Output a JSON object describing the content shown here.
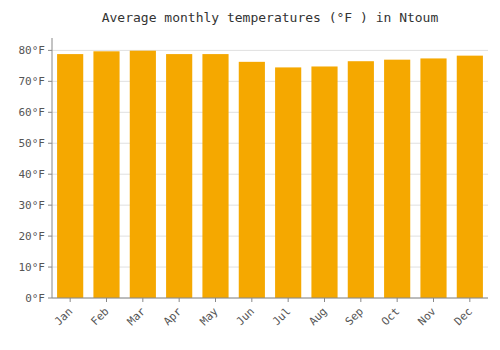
{
  "chart_data": {
    "type": "bar",
    "title": "Average monthly temperatures (°F ) in Ntoum",
    "categories": [
      "Jan",
      "Feb",
      "Mar",
      "Apr",
      "May",
      "Jun",
      "Jul",
      "Aug",
      "Sep",
      "Oct",
      "Nov",
      "Dec"
    ],
    "values": [
      78.8,
      79.7,
      79.9,
      78.8,
      78.8,
      76.3,
      74.5,
      74.8,
      76.5,
      77.0,
      77.4,
      78.3
    ],
    "color": "#F5A800",
    "ylim": [
      0,
      84
    ],
    "yticks": [
      {
        "value": 0,
        "label": "0°F"
      },
      {
        "value": 10,
        "label": "10°F"
      },
      {
        "value": 20,
        "label": "20°F"
      },
      {
        "value": 30,
        "label": "30°F"
      },
      {
        "value": 40,
        "label": "40°F"
      },
      {
        "value": 50,
        "label": "50°F"
      },
      {
        "value": 60,
        "label": "60°F"
      },
      {
        "value": 70,
        "label": "70°F"
      },
      {
        "value": 80,
        "label": "80°F"
      }
    ],
    "grid": true
  }
}
